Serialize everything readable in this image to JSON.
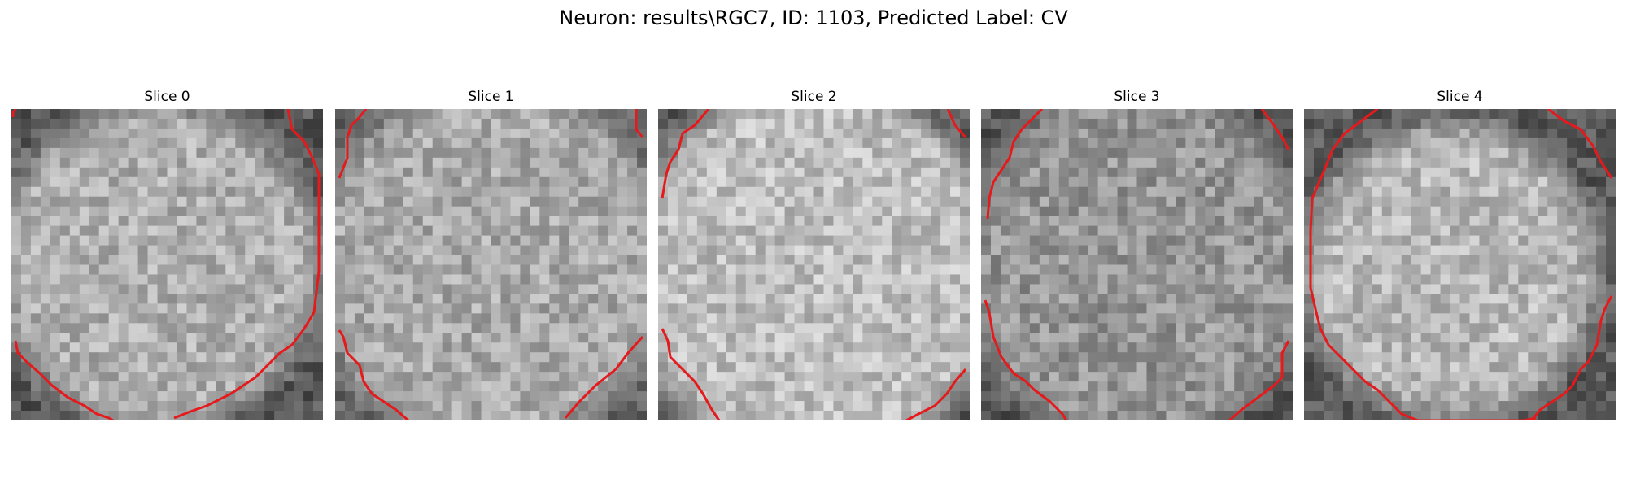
{
  "figure": {
    "title": "Neuron: results\\RGC7, ID: 1103, Predicted Label: CV"
  },
  "colors": {
    "boundary": "#e41a1c",
    "background": "#ffffff"
  },
  "slices": [
    {
      "title": "Slice 0"
    },
    {
      "title": "Slice 1"
    },
    {
      "title": "Slice 2"
    },
    {
      "title": "Slice 3"
    },
    {
      "title": "Slice 4"
    }
  ]
}
